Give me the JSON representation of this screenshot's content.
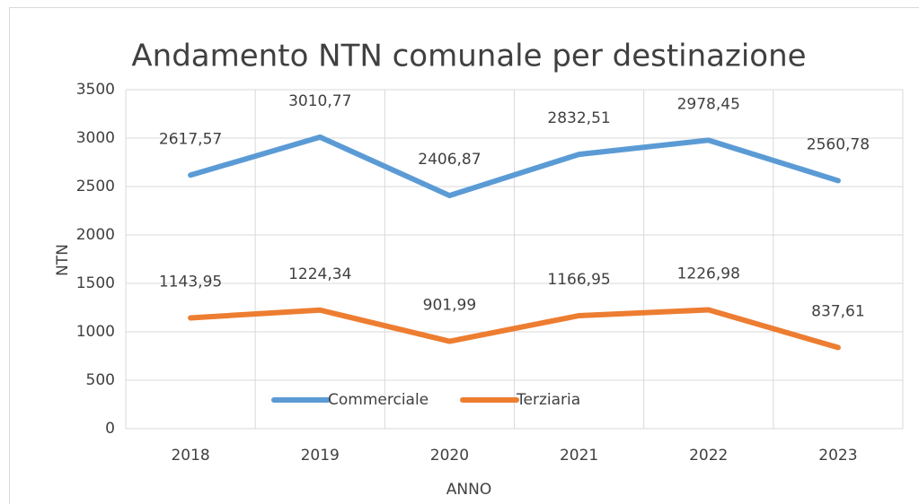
{
  "chart_data": {
    "type": "line",
    "title": "Andamento NTN comunale per destinazione",
    "x_label": "ANNO",
    "y_label": "NTN",
    "categories": [
      "2018",
      "2019",
      "2020",
      "2021",
      "2022",
      "2023"
    ],
    "series": [
      {
        "name": "Commerciale",
        "color": "#5b9bd5",
        "values": [
          2617.57,
          3010.77,
          2406.87,
          2832.51,
          2978.45,
          2560.78
        ],
        "value_labels": [
          "2617,57",
          "3010,77",
          "2406,87",
          "2832,51",
          "2978,45",
          "2560,78"
        ]
      },
      {
        "name": "Terziaria",
        "color": "#ed7d31",
        "values": [
          1143.95,
          1224.34,
          901.99,
          1166.95,
          1226.98,
          837.61
        ],
        "value_labels": [
          "1143,95",
          "1224,34",
          "901,99",
          "1166,95",
          "1226,98",
          "837,61"
        ]
      }
    ],
    "ylim": [
      0,
      3500
    ],
    "yticks": [
      0,
      500,
      1000,
      1500,
      2000,
      2500,
      3000,
      3500
    ],
    "grid": true,
    "legend": "bottom"
  }
}
